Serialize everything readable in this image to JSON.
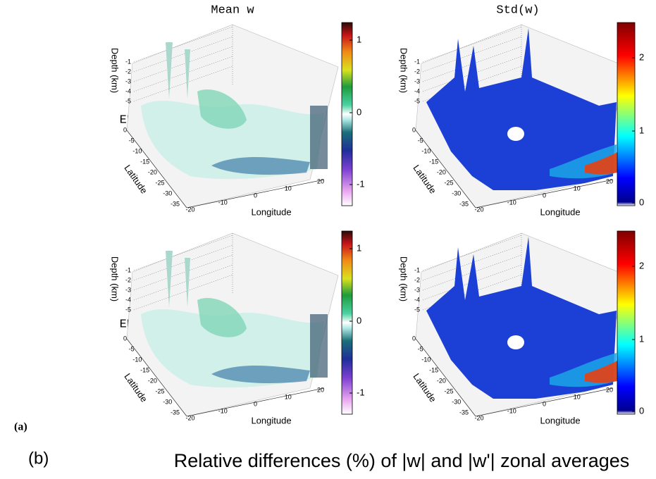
{
  "columns": [
    "Mean w",
    "Std(w)"
  ],
  "rows": [
    "EENf",
    "EENp"
  ],
  "axis_labels": {
    "depth": "Depth (km)",
    "latitude": "Latitude",
    "longitude": "Longitude"
  },
  "depth_ticks": [
    "-1",
    "-2",
    "-3",
    "-4",
    "-5"
  ],
  "latitude_ticks": [
    "0",
    "-5",
    "-10",
    "-15",
    "-20",
    "-25",
    "-30",
    "-35"
  ],
  "longitude_ticks": [
    "-20",
    "-10",
    "0",
    "10",
    "20"
  ],
  "colorbars": {
    "mean": [
      "1",
      "0",
      "-1"
    ],
    "std": [
      "2",
      "1",
      "0"
    ]
  },
  "panel_labels": [
    "(a)",
    "(b)"
  ],
  "caption_b": "Relative differences (%) of |w| and |w'| zonal averages"
}
